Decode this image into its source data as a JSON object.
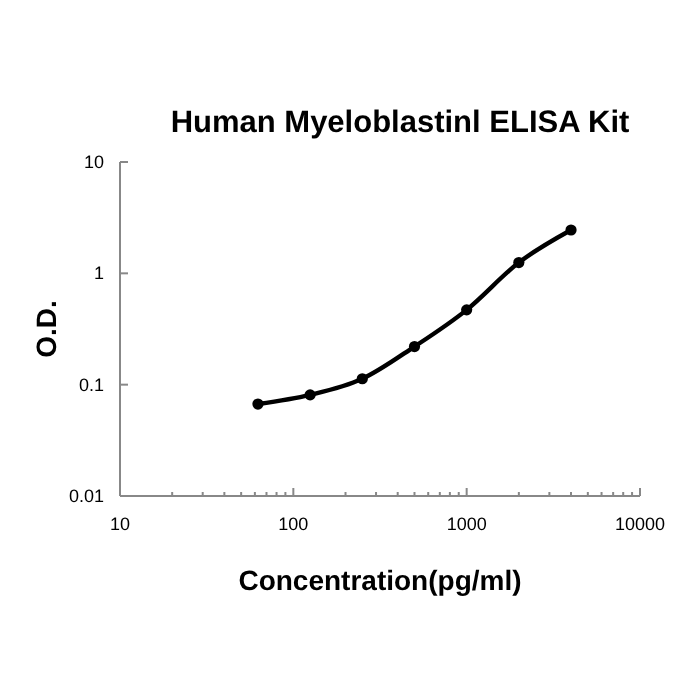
{
  "chart_data": {
    "type": "line",
    "title": "Human Myeloblastinl ELISA Kit",
    "xlabel": "Concentration(pg/ml)",
    "ylabel": "O.D.",
    "log": "xy",
    "marker": "circle",
    "line_style": "solid",
    "grid": false,
    "x": [
      62.5,
      125,
      250,
      500,
      1000,
      2000,
      4000
    ],
    "series": [
      {
        "color": "#000000",
        "values": [
          0.067,
          0.081,
          0.113,
          0.22,
          0.47,
          1.25,
          2.45
        ]
      }
    ],
    "xlim": [
      10,
      10000
    ],
    "xticks": [
      10,
      {
        "value": 20,
        "label": null
      },
      {
        "value": 30,
        "label": null
      },
      {
        "value": 40,
        "label": null
      },
      {
        "value": 50,
        "label": null
      },
      {
        "value": 60,
        "label": null
      },
      {
        "value": 70,
        "label": null
      },
      {
        "value": 80,
        "label": null
      },
      {
        "value": 90,
        "label": null
      },
      100,
      {
        "value": 200,
        "label": null
      },
      {
        "value": 300,
        "label": null
      },
      {
        "value": 400,
        "label": null
      },
      {
        "value": 500,
        "label": null
      },
      {
        "value": 600,
        "label": null
      },
      {
        "value": 700,
        "label": null
      },
      {
        "value": 800,
        "label": null
      },
      {
        "value": 900,
        "label": null
      },
      1000,
      {
        "value": 2000,
        "label": null
      },
      {
        "value": 3000,
        "label": null
      },
      {
        "value": 4000,
        "label": null
      },
      {
        "value": 5000,
        "label": null
      },
      {
        "value": 6000,
        "label": null
      },
      {
        "value": 7000,
        "label": null
      },
      {
        "value": 8000,
        "label": null
      },
      {
        "value": 9000,
        "label": null
      },
      10000
    ],
    "ylim": [
      0.01,
      10
    ],
    "yticks": [
      0.01,
      0.1,
      1,
      10
    ]
  }
}
